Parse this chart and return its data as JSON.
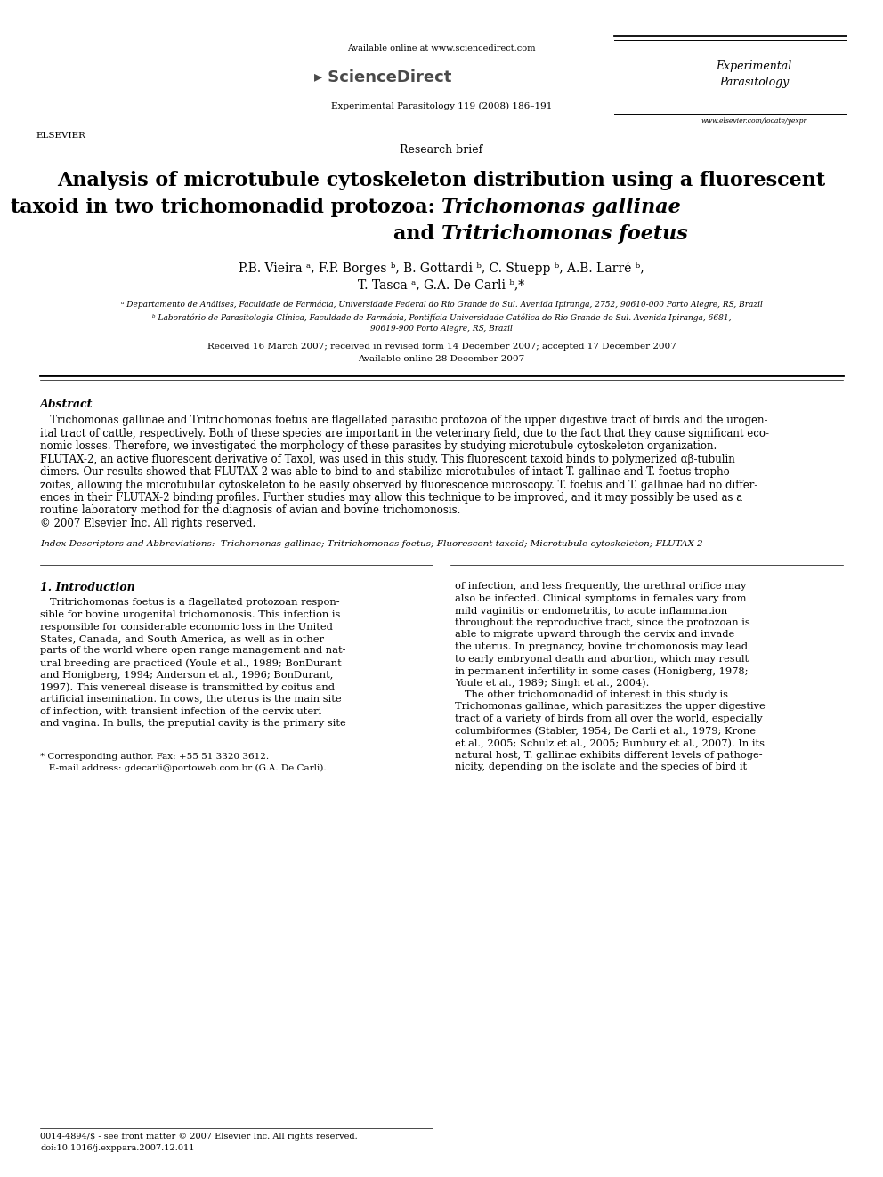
{
  "bg_color": "#ffffff",
  "page_width": 9.92,
  "page_height": 13.23,
  "dpi": 100,
  "header_available": "Available online at www.sciencedirect.com",
  "header_journal_info": "Experimental Parasitology 119 (2008) 186–191",
  "header_journal_name_right": "Experimental\nParasitology",
  "header_url_right": "www.elsevier.com/locate/yexpr",
  "section": "Research brief",
  "title_line1": "Analysis of microtubule cytoskeleton distribution using a fluorescent",
  "title_line2_normal": "taxoid in two trichomonadid protozoa: ",
  "title_line2_italic": "Trichomonas gallinae",
  "title_line3_normal": "and ",
  "title_line3_italic": "Tritrichomonas foetus",
  "author_line1": "P.B. Vieira ᵃ, F.P. Borges ᵇ, B. Gottardi ᵇ, C. Stuepp ᵇ, A.B. Larré ᵇ,",
  "author_line2": "T. Tasca ᵃ, G.A. De Carli ᵇ,*",
  "affil_a": "ᵃ Departamento de Análises, Faculdade de Farmácia, Universidade Federal do Rio Grande do Sul. Avenida Ipiranga, 2752, 90610-000 Porto Alegre, RS, Brazil",
  "affil_b1": "ᵇ Laboratório de Parasitologia Clínica, Faculdade de Farmácia, Pontifícia Universidade Católica do Rio Grande do Sul. Avenida Ipiranga, 6681,",
  "affil_b2": "90619-900 Porto Alegre, RS, Brazil",
  "received": "Received 16 March 2007; received in revised form 14 December 2007; accepted 17 December 2007",
  "available": "Available online 28 December 2007",
  "abstract_title": "Abstract",
  "abstract_p1_italic": "Trichomonas gallinae",
  "abstract_p1_mid": " and ",
  "abstract_p1_italic2": "Tritrichomonas foetus",
  "abstract_body": " are flagellated parasitic protozoa of the upper digestive tract of birds and the urogenital tract of cattle, respectively. Both of these species are important in the veterinary field, due to the fact that they cause significant economic losses. Therefore, we investigated the morphology of these parasites by studying microtubule cytoskeleton organization. FLUTAX-2, an active fluorescent derivative of Taxol, was used in this study. This fluorescent taxoid binds to polymerized αβ-tubulin dimers. Our results showed that FLUTAX-2 was able to bind to and stabilize microtubules of intact T. gallinae and T. foetus trophozoites, allowing the microtubular cytoskeleton to be easily observed by fluorescence microscopy. T. foetus and T. gallinae had no differences in their FLUTAX-2 binding profiles. Further studies may allow this technique to be improved, and it may possibly be used as a routine laboratory method for the diagnosis of avian and bovine trichomonosis.\n© 2007 Elsevier Inc. All rights reserved.",
  "index_text": "Index Descriptors and Abbreviations:  Trichomonas gallinae; Tritrichomonas foetus; Fluorescent taxoid; Microtubule cytoskeleton; FLUTAX-2",
  "intro_title": "1. Introduction",
  "intro_left_lines": [
    "   Tritrichomonas foetus is a flagellated protozoan respon-",
    "sible for bovine urogenital trichomonosis. This infection is",
    "responsible for considerable economic loss in the United",
    "States, Canada, and South America, as well as in other",
    "parts of the world where open range management and nat-",
    "ural breeding are practiced (Youle et al., 1989; BonDurant",
    "and Honigberg, 1994; Anderson et al., 1996; BonDurant,",
    "1997). This venereal disease is transmitted by coitus and",
    "artificial insemination. In cows, the uterus is the main site",
    "of infection, with transient infection of the cervix uteri",
    "and vagina. In bulls, the preputial cavity is the primary site"
  ],
  "intro_right_lines": [
    "of infection, and less frequently, the urethral orifice may",
    "also be infected. Clinical symptoms in females vary from",
    "mild vaginitis or endometritis, to acute inflammation",
    "throughout the reproductive tract, since the protozoan is",
    "able to migrate upward through the cervix and invade",
    "the uterus. In pregnancy, bovine trichomonosis may lead",
    "to early embryonal death and abortion, which may result",
    "in permanent infertility in some cases (Honigberg, 1978;",
    "Youle et al., 1989; Singh et al., 2004).",
    "   The other trichomonadid of interest in this study is",
    "Trichomonas gallinae, which parasitizes the upper digestive",
    "tract of a variety of birds from all over the world, especially",
    "columbiformes (Stabler, 1954; De Carli et al., 1979; Krone",
    "et al., 2005; Schulz et al., 2005; Bunbury et al., 2007). In its",
    "natural host, T. gallinae exhibits different levels of pathoge-",
    "nicity, depending on the isolate and the species of bird it"
  ],
  "footnote1": "* Corresponding author. Fax: +55 51 3320 3612.",
  "footnote2": "   E-mail address: gdecarli@portoweb.com.br (G.A. De Carli).",
  "footer1": "0014-4894/$ - see front matter © 2007 Elsevier Inc. All rights reserved.",
  "footer2": "doi:10.1016/j.exppara.2007.12.011"
}
